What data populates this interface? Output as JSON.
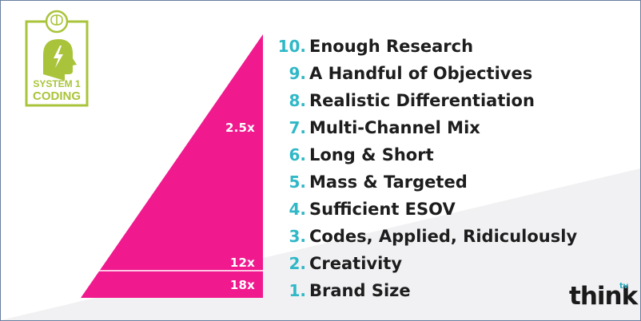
{
  "logo": {
    "line1": "SYSTEM 1",
    "line2": "CODING",
    "icon": "lightning-head-icon",
    "top_icon": "brain-icon",
    "color": "#a9c43a"
  },
  "pyramid": {
    "color": "#f0198e",
    "multipliers": [
      {
        "label": "2.5x"
      },
      {
        "label": "12x"
      },
      {
        "label": "18x"
      }
    ]
  },
  "items": [
    {
      "num": "10.",
      "label": "Enough Research"
    },
    {
      "num": "9.",
      "label": "A Handful of Objectives"
    },
    {
      "num": "8.",
      "label": "Realistic Differentiation"
    },
    {
      "num": "7.",
      "label": "Multi-Channel Mix"
    },
    {
      "num": "6.",
      "label": "Long & Short"
    },
    {
      "num": "5.",
      "label": "Mass & Targeted"
    },
    {
      "num": "4.",
      "label": "Sufficient ESOV"
    },
    {
      "num": "3.",
      "label": "Codes, Applied, Ridiculously"
    },
    {
      "num": "2.",
      "label": "Creativity"
    },
    {
      "num": "1.",
      "label": "Brand Size"
    }
  ],
  "brand": {
    "name": "think",
    "sup": "tv"
  },
  "colors": {
    "number": "#30b8c7",
    "text": "#1d1d1d"
  }
}
